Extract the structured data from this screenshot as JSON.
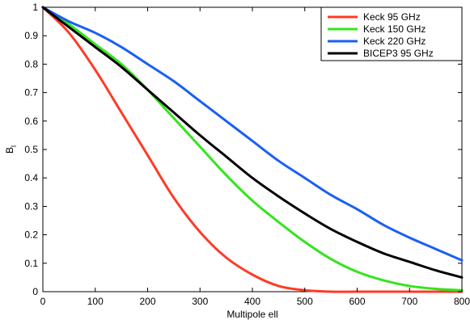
{
  "chart_data": {
    "type": "line",
    "title": "",
    "xlabel": "Multipole ell",
    "ylabel": "B",
    "ylabel_subscript": "l",
    "xlim": [
      0,
      800
    ],
    "ylim": [
      0,
      1
    ],
    "x_ticks": [
      0,
      100,
      200,
      300,
      400,
      500,
      600,
      700,
      800
    ],
    "y_ticks": [
      0,
      0.1,
      0.2,
      0.3,
      0.4,
      0.5,
      0.6,
      0.7,
      0.8,
      0.9,
      1
    ],
    "x_tick_labels": [
      "0",
      "100",
      "200",
      "300",
      "400",
      "500",
      "600",
      "700",
      "800"
    ],
    "y_tick_labels": [
      "0",
      "0.1",
      "0.2",
      "0.3",
      "0.4",
      "0.5",
      "0.6",
      "0.7",
      "0.8",
      "0.9",
      "1"
    ],
    "grid": false,
    "legend_position": "top-right",
    "x": [
      0,
      50,
      100,
      150,
      200,
      250,
      300,
      350,
      400,
      450,
      500,
      550,
      600,
      650,
      700,
      750,
      800
    ],
    "series": [
      {
        "name": "Keck 95 GHz",
        "color": "#ff3a26",
        "values": [
          1.0,
          0.91,
          0.78,
          0.63,
          0.48,
          0.33,
          0.21,
          0.12,
          0.06,
          0.02,
          0.005,
          0.0,
          0.0,
          0.0,
          0.0,
          0.0,
          0.0
        ]
      },
      {
        "name": "Keck 150 GHz",
        "color": "#33e51c",
        "values": [
          1.0,
          0.94,
          0.87,
          0.8,
          0.71,
          0.61,
          0.51,
          0.41,
          0.32,
          0.245,
          0.175,
          0.115,
          0.07,
          0.04,
          0.02,
          0.01,
          0.005
        ]
      },
      {
        "name": "Keck 220 GHz",
        "color": "#1a5ff5",
        "values": [
          1.0,
          0.95,
          0.91,
          0.86,
          0.8,
          0.74,
          0.67,
          0.6,
          0.53,
          0.46,
          0.4,
          0.34,
          0.29,
          0.235,
          0.19,
          0.15,
          0.11
        ]
      },
      {
        "name": "BICEP3 95 GHz",
        "color": "#000000",
        "values": [
          1.0,
          0.93,
          0.86,
          0.79,
          0.71,
          0.63,
          0.55,
          0.475,
          0.4,
          0.335,
          0.275,
          0.22,
          0.175,
          0.135,
          0.105,
          0.075,
          0.05
        ]
      }
    ]
  }
}
